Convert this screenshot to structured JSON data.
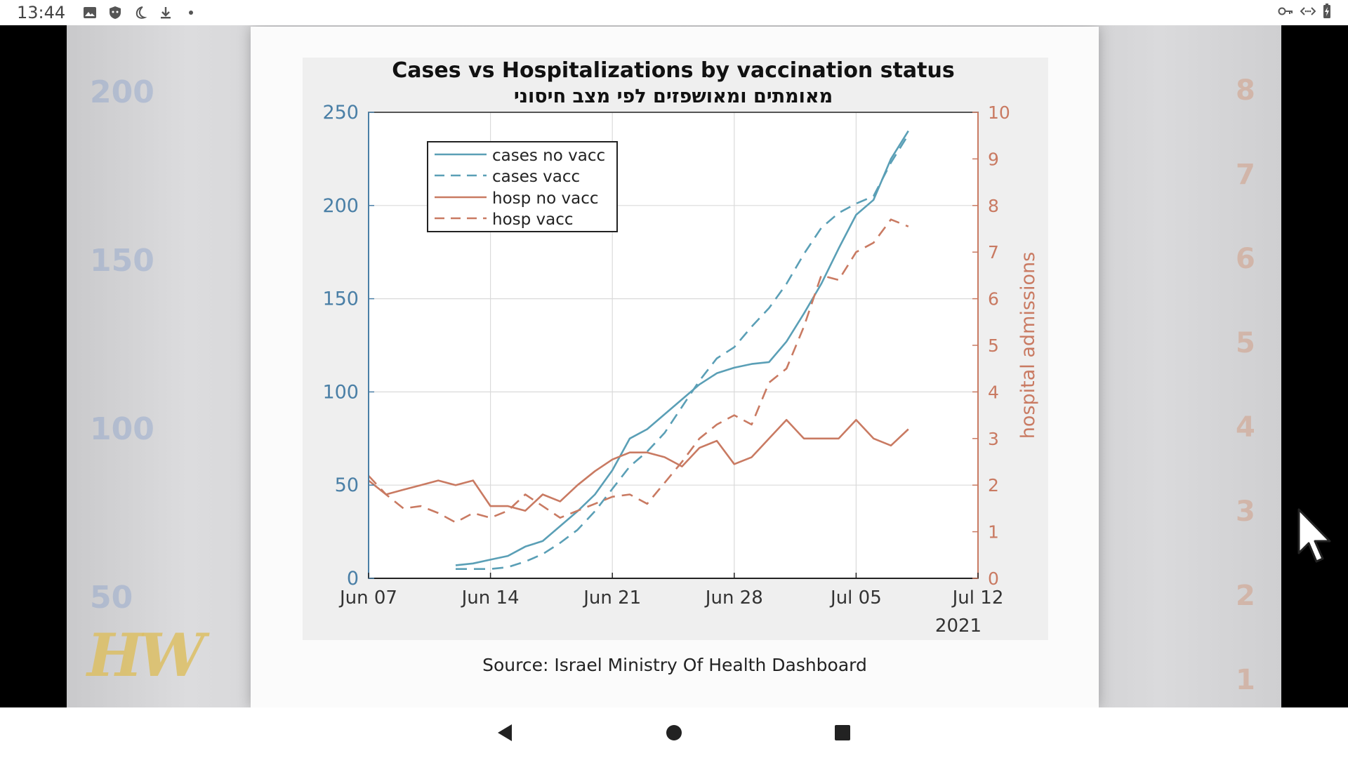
{
  "status_bar": {
    "time": "13:44",
    "left_icons": [
      "image-icon",
      "shield-icon",
      "moon-icon",
      "download-icon",
      "dot-icon"
    ],
    "right_icons": [
      "key-icon",
      "code-icon",
      "battery-icon"
    ]
  },
  "background_ticks": {
    "left": [
      "200",
      "150",
      "100",
      "50"
    ],
    "right": [
      "8",
      "7",
      "6",
      "5",
      "4",
      "3",
      "2",
      "1"
    ]
  },
  "watermark": "HW",
  "source": "Source: Israel Ministry Of Health Dashboard",
  "chart_data": {
    "type": "line",
    "title": "Cases vs Hospitalizations by vaccination status",
    "subtitle": "מאומתים ומאושפזים לפי מצב חיסוני",
    "xlabel": "2021",
    "ylabel": "",
    "y2label": "hospital admissions",
    "x_ticks": [
      "Jun 07",
      "Jun 14",
      "Jun 21",
      "Jun 28",
      "Jul 05",
      "Jul 12"
    ],
    "xlim": [
      0,
      35
    ],
    "ylim": [
      0,
      250
    ],
    "y_ticks": [
      0,
      50,
      100,
      150,
      200,
      250
    ],
    "y2lim": [
      0,
      10
    ],
    "y2_ticks": [
      0,
      1,
      2,
      3,
      4,
      5,
      6,
      7,
      8,
      9,
      10
    ],
    "grid": true,
    "legend_position": "top-left",
    "colors": {
      "cases": "#5a9fb6",
      "hosp": "#c97a62",
      "left_axis": "#4a7fa6",
      "right_axis": "#c97a62"
    },
    "series": [
      {
        "name": "cases no vacc",
        "axis": "left",
        "style": "solid",
        "color": "#5a9fb6",
        "points": [
          [
            5,
            7
          ],
          [
            6,
            8
          ],
          [
            7,
            10
          ],
          [
            8,
            12
          ],
          [
            9,
            17
          ],
          [
            10,
            20
          ],
          [
            11,
            28
          ],
          [
            12,
            36
          ],
          [
            13,
            45
          ],
          [
            14,
            58
          ],
          [
            15,
            75
          ],
          [
            16,
            80
          ],
          [
            17,
            88
          ],
          [
            18,
            96
          ],
          [
            19,
            104
          ],
          [
            20,
            110
          ],
          [
            21,
            113
          ],
          [
            22,
            115
          ],
          [
            23,
            116
          ],
          [
            24,
            127
          ],
          [
            25,
            142
          ],
          [
            26,
            158
          ],
          [
            27,
            177
          ],
          [
            28,
            195
          ],
          [
            29,
            203
          ],
          [
            30,
            225
          ],
          [
            31,
            240
          ]
        ]
      },
      {
        "name": "cases vacc",
        "axis": "left",
        "style": "dashed",
        "color": "#5a9fb6",
        "points": [
          [
            5,
            5
          ],
          [
            6,
            5
          ],
          [
            7,
            5
          ],
          [
            8,
            6
          ],
          [
            9,
            9
          ],
          [
            10,
            13
          ],
          [
            11,
            19
          ],
          [
            12,
            26
          ],
          [
            13,
            36
          ],
          [
            14,
            48
          ],
          [
            15,
            60
          ],
          [
            16,
            68
          ],
          [
            17,
            78
          ],
          [
            18,
            92
          ],
          [
            19,
            106
          ],
          [
            20,
            118
          ],
          [
            21,
            124
          ],
          [
            22,
            135
          ],
          [
            23,
            145
          ],
          [
            24,
            158
          ],
          [
            25,
            174
          ],
          [
            26,
            188
          ],
          [
            27,
            196
          ],
          [
            28,
            201
          ],
          [
            29,
            205
          ],
          [
            30,
            223
          ],
          [
            31,
            238
          ]
        ]
      },
      {
        "name": "hosp no vacc",
        "axis": "right",
        "style": "solid",
        "color": "#c97a62",
        "points": [
          [
            0,
            2.1
          ],
          [
            1,
            1.8
          ],
          [
            2,
            1.9
          ],
          [
            3,
            2.0
          ],
          [
            4,
            2.1
          ],
          [
            5,
            2.0
          ],
          [
            6,
            2.1
          ],
          [
            7,
            1.55
          ],
          [
            8,
            1.55
          ],
          [
            9,
            1.45
          ],
          [
            10,
            1.8
          ],
          [
            11,
            1.65
          ],
          [
            12,
            2.0
          ],
          [
            13,
            2.3
          ],
          [
            14,
            2.55
          ],
          [
            15,
            2.7
          ],
          [
            16,
            2.7
          ],
          [
            17,
            2.6
          ],
          [
            18,
            2.4
          ],
          [
            19,
            2.8
          ],
          [
            20,
            2.95
          ],
          [
            21,
            2.45
          ],
          [
            22,
            2.6
          ],
          [
            23,
            3.0
          ],
          [
            24,
            3.4
          ],
          [
            25,
            3.0
          ],
          [
            26,
            3.0
          ],
          [
            27,
            3.0
          ],
          [
            28,
            3.4
          ],
          [
            29,
            3.0
          ],
          [
            30,
            2.85
          ],
          [
            31,
            3.2
          ]
        ]
      },
      {
        "name": "hosp vacc",
        "axis": "right",
        "style": "dashed",
        "color": "#c97a62",
        "points": [
          [
            0,
            2.2
          ],
          [
            1,
            1.8
          ],
          [
            2,
            1.5
          ],
          [
            3,
            1.55
          ],
          [
            4,
            1.4
          ],
          [
            5,
            1.2
          ],
          [
            6,
            1.4
          ],
          [
            7,
            1.3
          ],
          [
            8,
            1.45
          ],
          [
            9,
            1.8
          ],
          [
            10,
            1.55
          ],
          [
            11,
            1.3
          ],
          [
            12,
            1.45
          ],
          [
            13,
            1.6
          ],
          [
            14,
            1.75
          ],
          [
            15,
            1.8
          ],
          [
            16,
            1.6
          ],
          [
            17,
            2.05
          ],
          [
            18,
            2.5
          ],
          [
            19,
            3.0
          ],
          [
            20,
            3.3
          ],
          [
            21,
            3.5
          ],
          [
            22,
            3.3
          ],
          [
            23,
            4.2
          ],
          [
            24,
            4.5
          ],
          [
            25,
            5.4
          ],
          [
            26,
            6.5
          ],
          [
            27,
            6.4
          ],
          [
            28,
            7.0
          ],
          [
            29,
            7.2
          ],
          [
            30,
            7.7
          ],
          [
            31,
            7.55
          ]
        ]
      }
    ]
  }
}
